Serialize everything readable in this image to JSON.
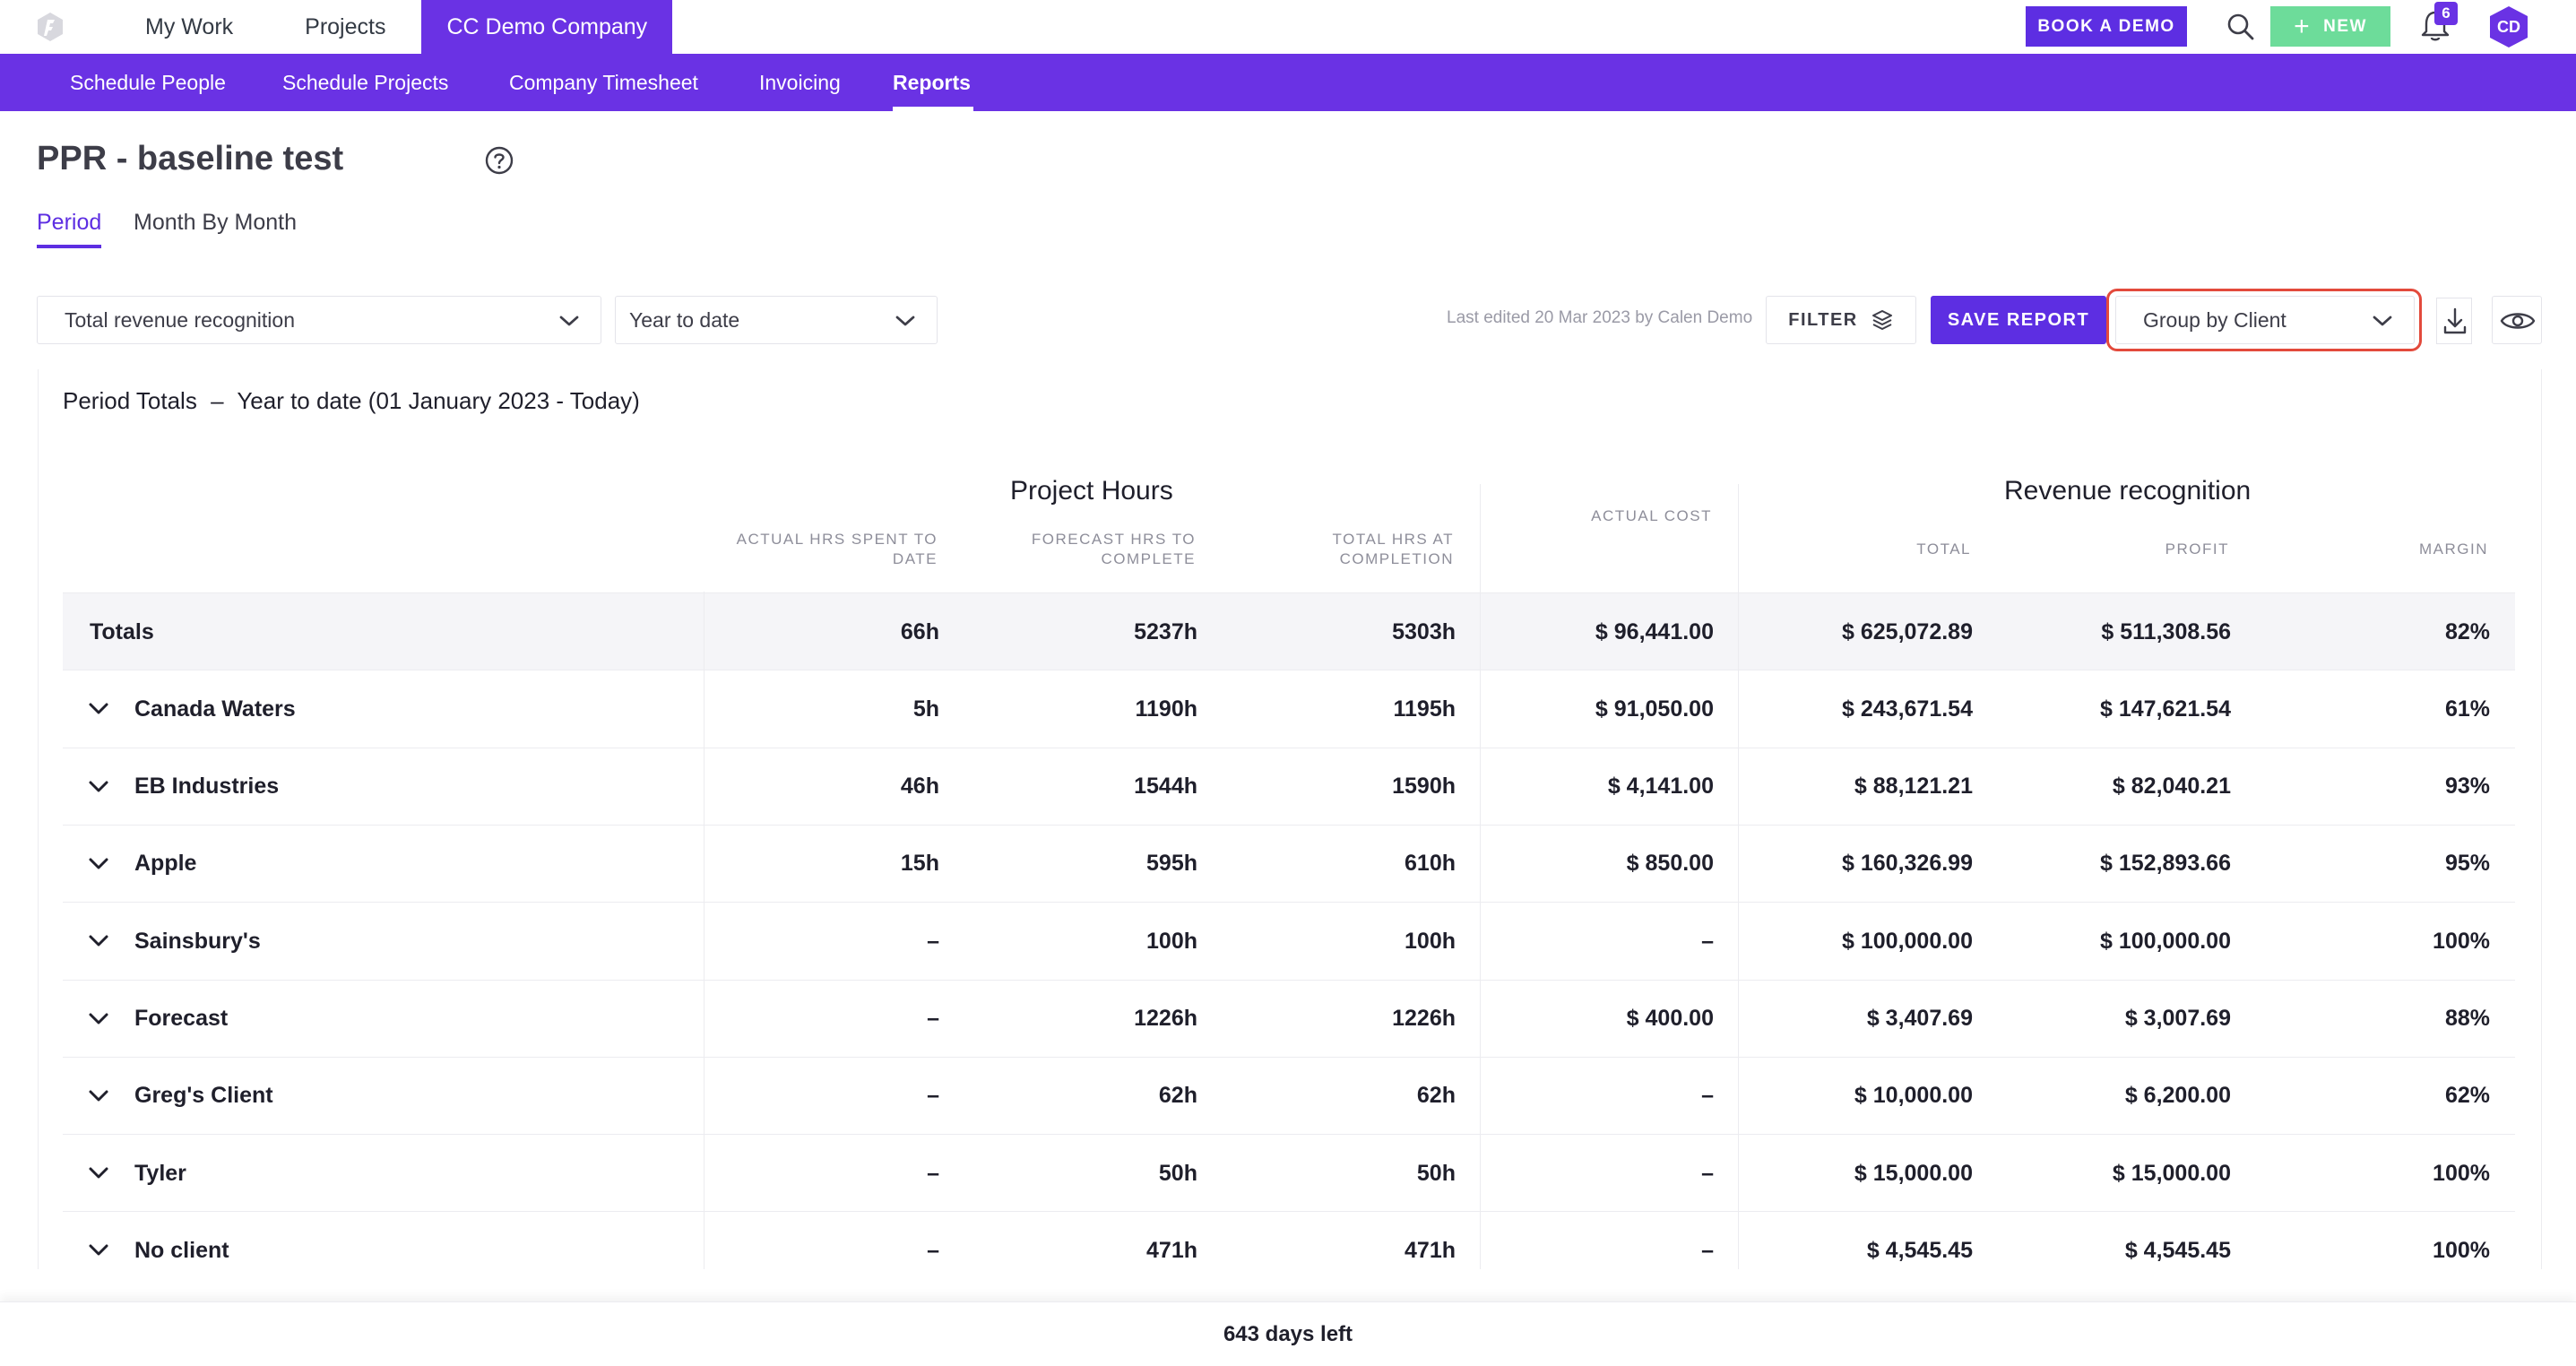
{
  "topnav": {
    "items": [
      "My Work",
      "Projects"
    ],
    "company": "CC Demo Company",
    "book_demo": "BOOK A DEMO",
    "new_label": "NEW",
    "notification_count": "6",
    "avatar_initials": "CD",
    "icons": {
      "logo": "forecast-logo-icon",
      "search": "search-icon",
      "bell": "bell-icon"
    }
  },
  "subnav": {
    "items": [
      "Schedule People",
      "Schedule Projects",
      "Company Timesheet",
      "Invoicing",
      "Reports"
    ],
    "active": "Reports"
  },
  "page": {
    "title": "PPR - baseline test",
    "tabs": [
      "Period",
      "Month By Month"
    ],
    "active_tab": "Period"
  },
  "controls": {
    "metric_select": "Total revenue recognition",
    "period_select": "Year to date",
    "last_edited": "Last edited 20 Mar 2023 by Calen Demo",
    "filter": "FILTER",
    "save_report": "SAVE REPORT",
    "group_by": "Group by Client"
  },
  "report": {
    "period_label": "Period Totals",
    "period_dash": "–",
    "period_value": "Year to date (01 January 2023 - Today)",
    "group_project_hours": "Project Hours",
    "group_revenue": "Revenue recognition",
    "columns": {
      "actual_hrs_1": "ACTUAL HRS SPENT TO",
      "actual_hrs_2": "DATE",
      "forecast_hrs_1": "FORECAST HRS TO",
      "forecast_hrs_2": "COMPLETE",
      "total_hrs_1": "TOTAL HRS AT",
      "total_hrs_2": "COMPLETION",
      "actual_cost": "ACTUAL COST",
      "total": "TOTAL",
      "profit": "PROFIT",
      "margin": "MARGIN"
    },
    "totals": {
      "name": "Totals",
      "actual": "66h",
      "forecast": "5237h",
      "total_hrs": "5303h",
      "cost": "$ 96,441.00",
      "total": "$ 625,072.89",
      "profit": "$ 511,308.56",
      "margin": "82%"
    },
    "rows": [
      {
        "name": "Canada Waters",
        "actual": "5h",
        "forecast": "1190h",
        "total_hrs": "1195h",
        "cost": "$ 91,050.00",
        "total": "$ 243,671.54",
        "profit": "$ 147,621.54",
        "margin": "61%"
      },
      {
        "name": "EB Industries",
        "actual": "46h",
        "forecast": "1544h",
        "total_hrs": "1590h",
        "cost": "$ 4,141.00",
        "total": "$ 88,121.21",
        "profit": "$ 82,040.21",
        "margin": "93%"
      },
      {
        "name": "Apple",
        "actual": "15h",
        "forecast": "595h",
        "total_hrs": "610h",
        "cost": "$ 850.00",
        "total": "$ 160,326.99",
        "profit": "$ 152,893.66",
        "margin": "95%"
      },
      {
        "name": "Sainsbury's",
        "actual": "–",
        "forecast": "100h",
        "total_hrs": "100h",
        "cost": "–",
        "total": "$ 100,000.00",
        "profit": "$ 100,000.00",
        "margin": "100%"
      },
      {
        "name": "Forecast",
        "actual": "–",
        "forecast": "1226h",
        "total_hrs": "1226h",
        "cost": "$ 400.00",
        "total": "$ 3,407.69",
        "profit": "$ 3,007.69",
        "margin": "88%"
      },
      {
        "name": "Greg's Client",
        "actual": "–",
        "forecast": "62h",
        "total_hrs": "62h",
        "cost": "–",
        "total": "$ 10,000.00",
        "profit": "$ 6,200.00",
        "margin": "62%"
      },
      {
        "name": "Tyler",
        "actual": "–",
        "forecast": "50h",
        "total_hrs": "50h",
        "cost": "–",
        "total": "$ 15,000.00",
        "profit": "$ 15,000.00",
        "margin": "100%"
      },
      {
        "name": "No client",
        "actual": "–",
        "forecast": "471h",
        "total_hrs": "471h",
        "cost": "–",
        "total": "$ 4,545.45",
        "profit": "$ 4,545.45",
        "margin": "100%"
      }
    ]
  },
  "footer": {
    "trial": "643 days left"
  },
  "colors": {
    "brand": "#6a32e4",
    "new_button": "#6ddc9a",
    "highlight": "#e34a3c"
  }
}
